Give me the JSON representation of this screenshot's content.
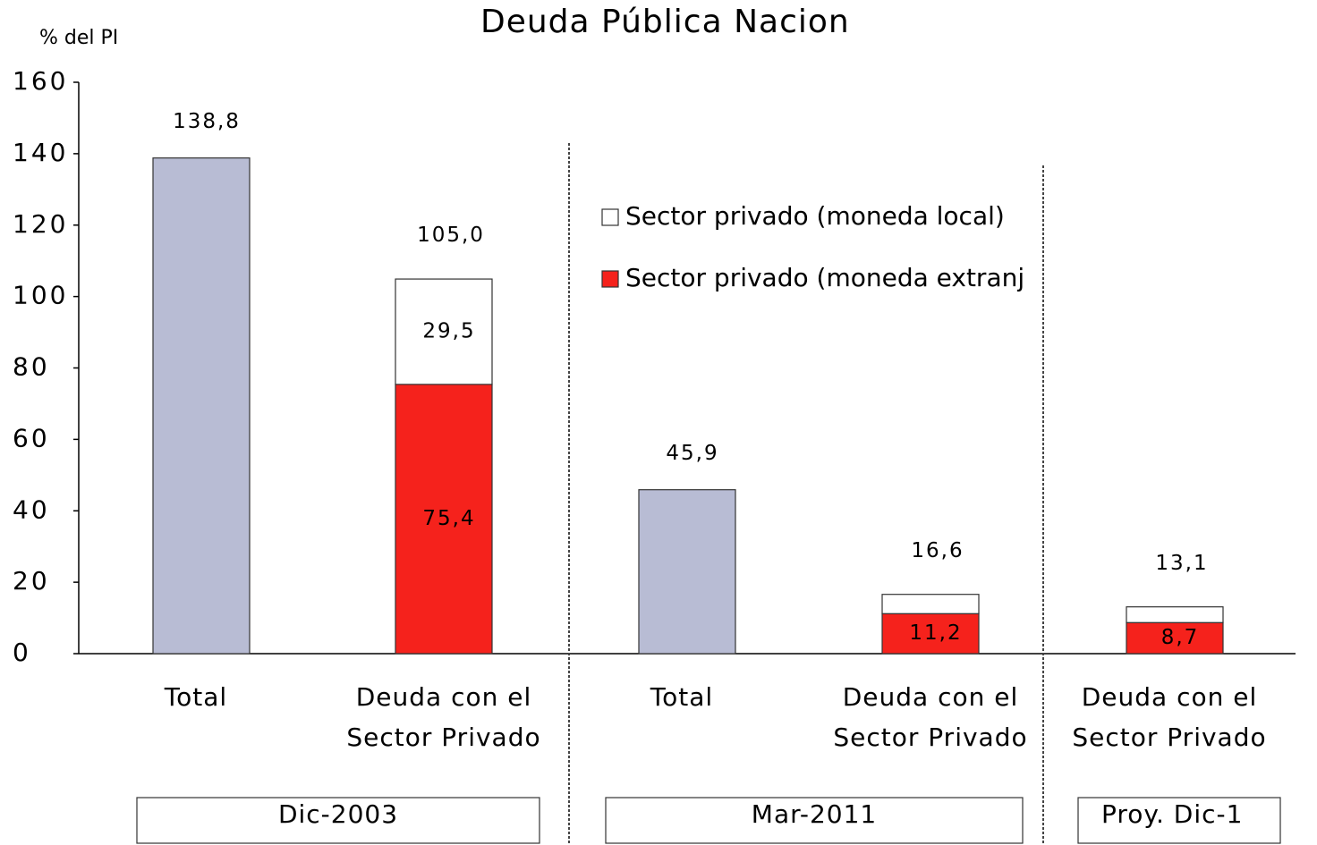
{
  "chart_data": {
    "type": "bar",
    "title": "Deuda Pública Nacion",
    "y_label": "% del PI",
    "categories": [
      "Total",
      "Deuda con el\nSector Privado",
      "Total",
      "Deuda con el\nSector Privado",
      "Deuda con el\nSector Privado"
    ],
    "groups": [
      "Dic-2003",
      "Mar-2011",
      "Proy. Dic-1"
    ],
    "stacked": true,
    "series": [
      {
        "color": "#b8bcd4",
        "values": [
          138.8,
          null,
          45.9,
          null,
          null
        ],
        "value_labels": [
          "138,8",
          null,
          "45,9",
          null,
          null
        ]
      },
      {
        "name": "Sector privado (moneda extranj",
        "color": "#f5221c",
        "values": [
          null,
          75.4,
          null,
          11.2,
          8.7
        ],
        "value_labels": [
          null,
          "75,4",
          null,
          "11,2",
          "8,7"
        ]
      },
      {
        "name": "Sector privado (moneda local)",
        "color": "#ffffff",
        "values": [
          null,
          29.5,
          null,
          5.4,
          4.4
        ],
        "value_labels": [
          null,
          "29,5",
          null,
          null,
          null
        ]
      }
    ],
    "stack_totals": [
      null,
      105.0,
      null,
      16.6,
      13.1
    ],
    "stack_total_labels": [
      null,
      "105,0",
      null,
      "16,6",
      "13,1"
    ],
    "ylim": [
      0,
      160
    ],
    "yticks": [
      0,
      20,
      40,
      60,
      80,
      100,
      120,
      140,
      160
    ]
  }
}
